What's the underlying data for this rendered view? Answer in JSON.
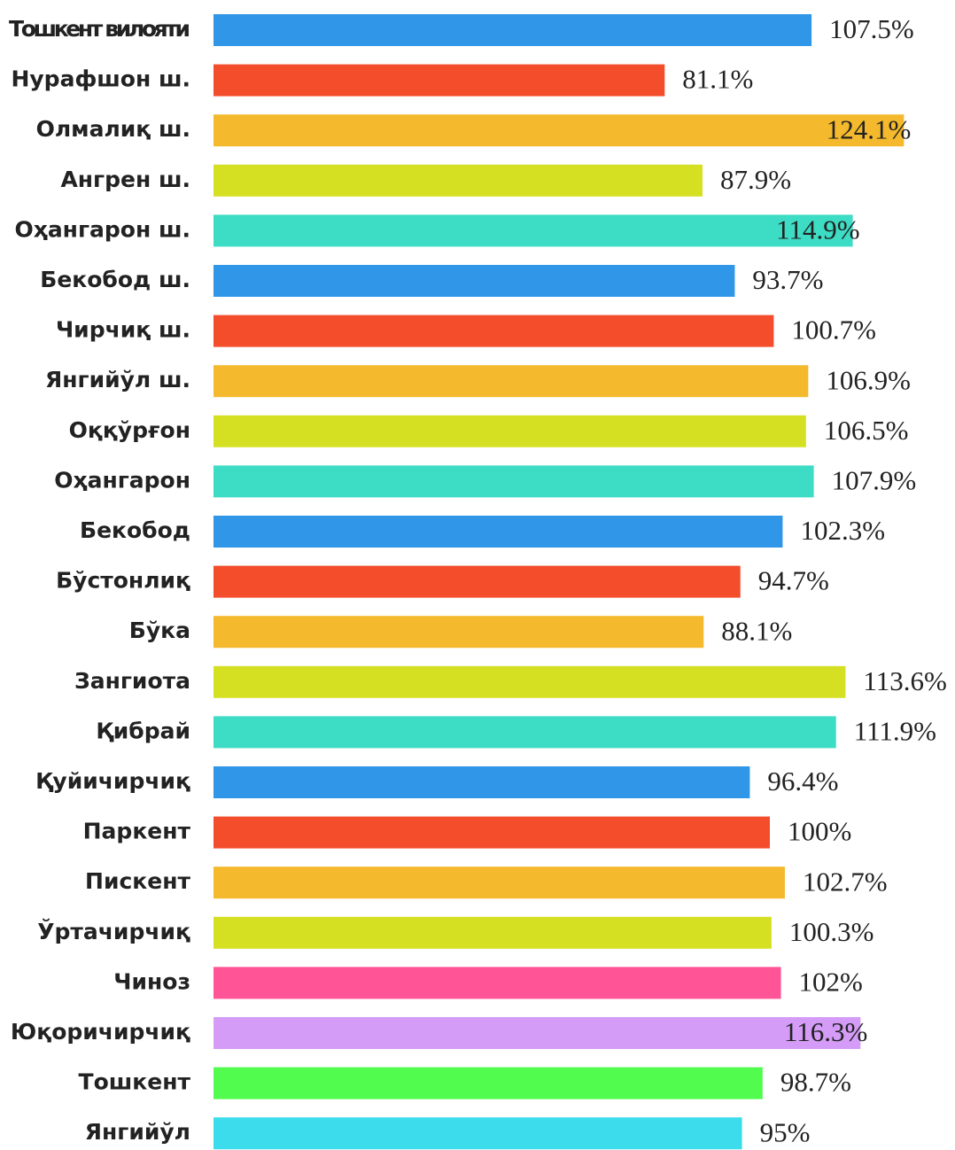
{
  "chart_data": {
    "type": "bar",
    "orientation": "horizontal",
    "categories": [
      "Тошкент вилояти",
      "Нурафшон ш.",
      "Олмалиқ ш.",
      "Ангрен ш.",
      "Оҳангарон ш.",
      "Бекобод ш.",
      "Чирчиқ ш.",
      "Янгийўл ш.",
      "Оққўрғон",
      "Оҳангарон",
      "Бекобод",
      "Бўстонлиқ",
      "Бўка",
      "Зангиота",
      "Қибрай",
      "Қуйичирчиқ",
      "Паркент",
      "Пискент",
      "Ўртачирчиқ",
      "Чиноз",
      "Юқоричирчиқ",
      "Тошкент",
      "Янгийўл"
    ],
    "values": [
      107.5,
      81.1,
      124.1,
      87.9,
      114.9,
      93.7,
      100.7,
      106.9,
      106.5,
      107.9,
      102.3,
      94.7,
      88.1,
      113.6,
      111.9,
      96.4,
      100,
      102.7,
      100.3,
      102,
      116.3,
      98.7,
      95
    ],
    "value_labels": [
      "107.5%",
      "81.1%",
      "124.1%",
      "87.9%",
      "114.9%",
      "93.7%",
      "100.7%",
      "106.9%",
      "106.5%",
      "107.9%",
      "102.3%",
      "94.7%",
      "88.1%",
      "113.6%",
      "111.9%",
      "96.4%",
      "100%",
      "102.7%",
      "100.3%",
      "102%",
      "116.3%",
      "98.7%",
      "95%"
    ],
    "colors": [
      "#3096e8",
      "#f44d2b",
      "#f4b92c",
      "#d6e023",
      "#3ddcc4",
      "#3096e8",
      "#f44d2b",
      "#f4b92c",
      "#d6e023",
      "#3ddcc4",
      "#3096e8",
      "#f44d2b",
      "#f4b92c",
      "#d6e023",
      "#3ddcc4",
      "#3096e8",
      "#f44d2b",
      "#f4b92c",
      "#d6e023",
      "#ff5597",
      "#d49cf7",
      "#52fc4e",
      "#3ddcec"
    ]
  }
}
